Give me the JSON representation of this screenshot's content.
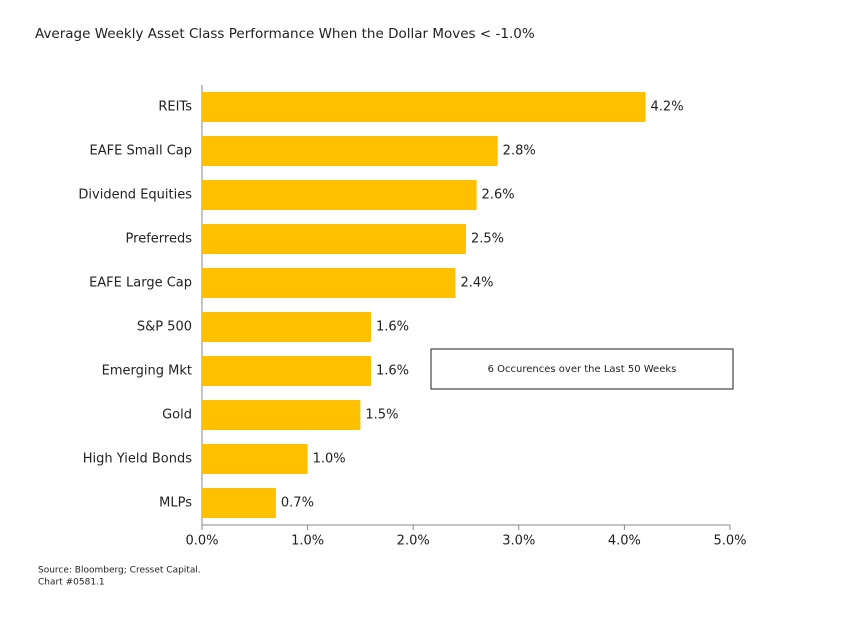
{
  "chart_data": {
    "type": "barh",
    "title": "Average Weekly Asset Class Performance When the Dollar Moves < -1.0%",
    "categories": [
      "REITs",
      "EAFE Small Cap",
      "Dividend Equities",
      "Preferreds",
      "EAFE Large Cap",
      "S&P 500",
      "Emerging Mkt",
      "Gold",
      "High Yield Bonds",
      "MLPs"
    ],
    "values": [
      4.2,
      2.8,
      2.6,
      2.5,
      2.4,
      1.6,
      1.6,
      1.5,
      1.0,
      0.7
    ],
    "value_labels": [
      "4.2%",
      "2.8%",
      "2.6%",
      "2.5%",
      "2.4%",
      "1.6%",
      "1.6%",
      "1.5%",
      "1.0%",
      "0.7%"
    ],
    "color": "#ffc000",
    "xlim": [
      0,
      5
    ],
    "xticks": [
      {
        "value": 0,
        "label": "0.0%"
      },
      {
        "value": 1,
        "label": "1.0%"
      },
      {
        "value": 2,
        "label": "2.0%"
      },
      {
        "value": 3,
        "label": "3.0%"
      },
      {
        "value": 4,
        "label": "4.0%"
      },
      {
        "value": 5,
        "label": "5.0%"
      }
    ],
    "grid": false,
    "annotation": "6 Occurences over the Last 50 Weeks",
    "source": [
      "Source: Bloomberg; Cresset Capital.",
      "Chart #0581.1"
    ]
  }
}
